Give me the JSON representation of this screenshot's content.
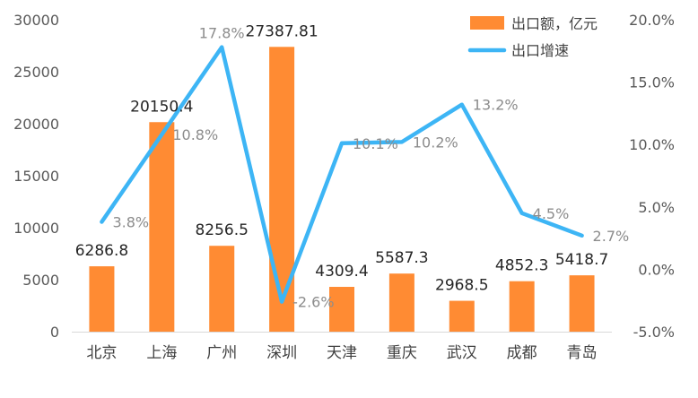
{
  "chart_data": {
    "type": "bar+line",
    "categories": [
      "北京",
      "上海",
      "广州",
      "深圳",
      "天津",
      "重庆",
      "武汉",
      "成都",
      "青岛"
    ],
    "series": [
      {
        "name": "出口额，亿元",
        "type": "bar",
        "axis": "left",
        "color": "#FF8B33",
        "values": [
          6286.8,
          20150.4,
          8256.5,
          27387.81,
          4309.4,
          5587.3,
          2968.5,
          4852.3,
          5418.7
        ],
        "labels": [
          "6286.8",
          "20150.4",
          "8256.5",
          "27387.81",
          "4309.4",
          "5587.3",
          "2968.5",
          "4852.3",
          "5418.7"
        ]
      },
      {
        "name": "出口增速",
        "type": "line",
        "axis": "right",
        "color": "#3DB5F5",
        "values": [
          3.8,
          10.8,
          17.8,
          -2.6,
          10.1,
          10.2,
          13.2,
          4.5,
          2.7
        ],
        "labels": [
          "3.8%",
          "10.8%",
          "17.8%",
          "-2.6%",
          "10.1%",
          "10.2%",
          "13.2%",
          "4.5%",
          "2.7%"
        ]
      }
    ],
    "y_left": {
      "min": 0,
      "max": 30000,
      "ticks": [
        "0",
        "5000",
        "10000",
        "15000",
        "20000",
        "25000",
        "30000"
      ]
    },
    "y_right": {
      "min": -5,
      "max": 20,
      "ticks": [
        "-5.0%",
        "0.0%",
        "5.0%",
        "10.0%",
        "15.0%",
        "20.0%"
      ]
    },
    "grid": false,
    "legend_position": "top-right"
  }
}
